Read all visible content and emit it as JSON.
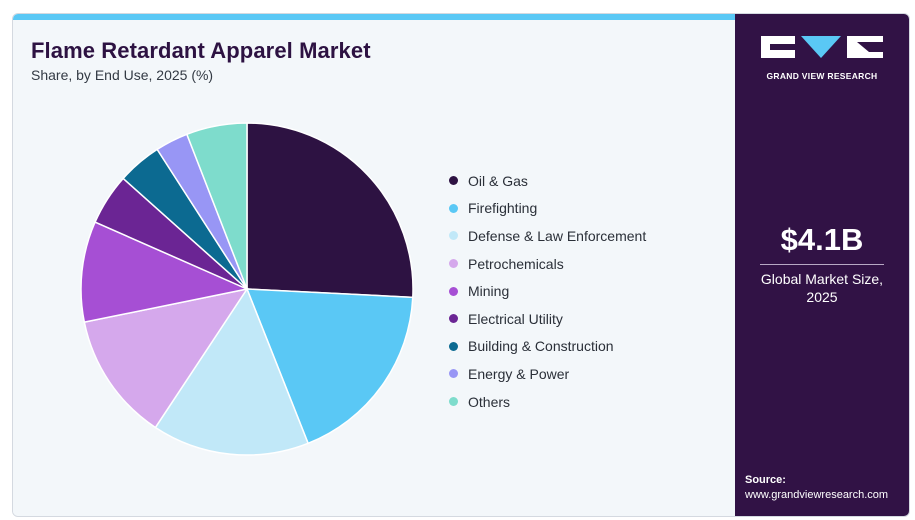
{
  "header": {
    "title": "Flame Retardant Apparel Market",
    "subtitle": "Share, by End Use, 2025 (%)"
  },
  "chart_data": {
    "type": "pie",
    "title": "Flame Retardant Apparel Market",
    "subtitle": "Share, by End Use, 2025 (%)",
    "categories": [
      "Oil & Gas",
      "Firefighting",
      "Defense & Law Enforcement",
      "Petrochemicals",
      "Mining",
      "Electrical Utility",
      "Building & Construction",
      "Energy & Power",
      "Others"
    ],
    "values": [
      25.8,
      18.2,
      15.3,
      12.5,
      9.8,
      5.0,
      4.3,
      3.2,
      5.9
    ],
    "colors": [
      "#2d1242",
      "#5ac8f5",
      "#c1e8f8",
      "#d5a8ec",
      "#a64fd4",
      "#6b2594",
      "#0c6a91",
      "#9896f5",
      "#7edccc"
    ],
    "legend_position": "right"
  },
  "sidebar": {
    "brand": "GRAND VIEW RESEARCH",
    "market_size_value": "$4.1B",
    "market_size_label": "Global Market Size, 2025",
    "source_label": "Source:",
    "source_url": "www.grandviewresearch.com"
  }
}
